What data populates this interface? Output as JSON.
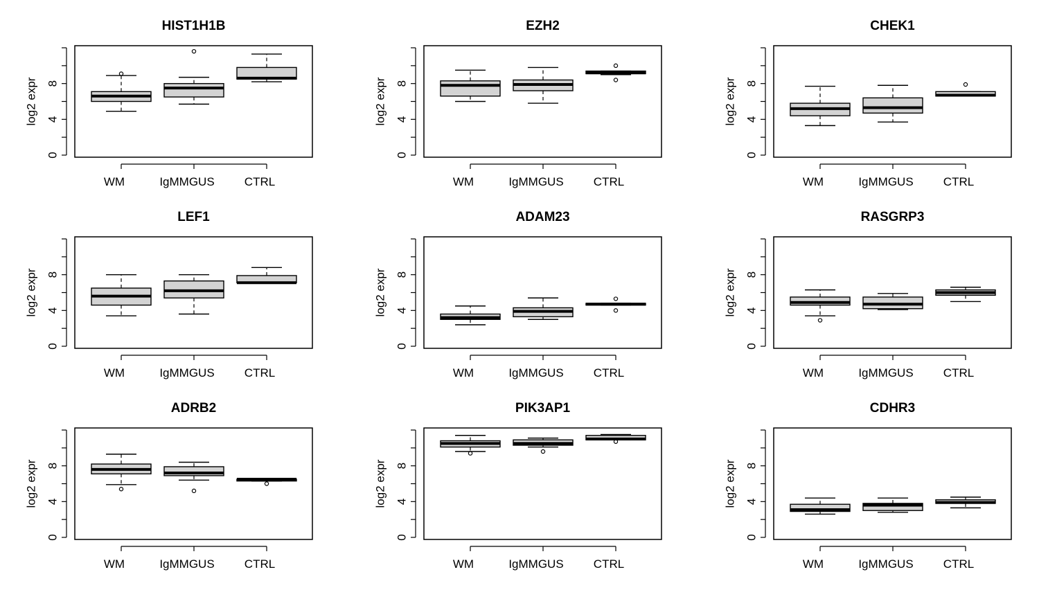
{
  "chart_data": [
    {
      "type": "box",
      "title": "HIST1H1B",
      "ylabel": "log2 expr",
      "ylim": [
        0,
        12
      ],
      "yticks": [
        0,
        4,
        8
      ],
      "categories": [
        "WM",
        "IgMMGUS",
        "CTRL"
      ],
      "boxes": [
        {
          "min": 4.9,
          "q1": 6.0,
          "median": 6.6,
          "q3": 7.1,
          "max": 8.9,
          "outliers": [
            9.1
          ]
        },
        {
          "min": 5.7,
          "q1": 6.5,
          "median": 7.5,
          "q3": 8.0,
          "max": 8.7,
          "outliers": [
            11.6
          ]
        },
        {
          "min": 8.2,
          "q1": 8.5,
          "median": 8.6,
          "q3": 9.8,
          "max": 11.3,
          "outliers": []
        }
      ]
    },
    {
      "type": "box",
      "title": "EZH2",
      "ylabel": "log2 expr",
      "ylim": [
        0,
        12
      ],
      "yticks": [
        0,
        4,
        8
      ],
      "categories": [
        "WM",
        "IgMMGUS",
        "CTRL"
      ],
      "boxes": [
        {
          "min": 6.0,
          "q1": 6.6,
          "median": 7.8,
          "q3": 8.3,
          "max": 9.5,
          "outliers": []
        },
        {
          "min": 5.8,
          "q1": 7.2,
          "median": 7.9,
          "q3": 8.4,
          "max": 9.8,
          "outliers": []
        },
        {
          "min": 9.0,
          "q1": 9.1,
          "median": 9.2,
          "q3": 9.4,
          "max": 9.4,
          "outliers": [
            10.0,
            8.4
          ]
        }
      ]
    },
    {
      "type": "box",
      "title": "CHEK1",
      "ylabel": "log2 expr",
      "ylim": [
        0,
        12
      ],
      "yticks": [
        0,
        4,
        8
      ],
      "categories": [
        "WM",
        "IgMMGUS",
        "CTRL"
      ],
      "boxes": [
        {
          "min": 3.3,
          "q1": 4.4,
          "median": 5.2,
          "q3": 5.8,
          "max": 7.7,
          "outliers": []
        },
        {
          "min": 3.7,
          "q1": 4.7,
          "median": 5.3,
          "q3": 6.4,
          "max": 7.8,
          "outliers": []
        },
        {
          "min": 6.6,
          "q1": 6.6,
          "median": 6.7,
          "q3": 7.1,
          "max": 7.1,
          "outliers": [
            7.9
          ]
        }
      ]
    },
    {
      "type": "box",
      "title": "LEF1",
      "ylabel": "log2 expr",
      "ylim": [
        0,
        12
      ],
      "yticks": [
        0,
        4,
        8
      ],
      "categories": [
        "WM",
        "IgMMGUS",
        "CTRL"
      ],
      "boxes": [
        {
          "min": 3.4,
          "q1": 4.6,
          "median": 5.6,
          "q3": 6.5,
          "max": 8.0,
          "outliers": []
        },
        {
          "min": 3.6,
          "q1": 5.4,
          "median": 6.2,
          "q3": 7.3,
          "max": 8.0,
          "outliers": []
        },
        {
          "min": 7.1,
          "q1": 7.1,
          "median": 7.1,
          "q3": 7.9,
          "max": 8.8,
          "outliers": []
        }
      ]
    },
    {
      "type": "box",
      "title": "ADAM23",
      "ylabel": "log2 expr",
      "ylim": [
        0,
        12
      ],
      "yticks": [
        0,
        4,
        8
      ],
      "categories": [
        "WM",
        "IgMMGUS",
        "CTRL"
      ],
      "boxes": [
        {
          "min": 2.4,
          "q1": 3.0,
          "median": 3.2,
          "q3": 3.6,
          "max": 4.5,
          "outliers": []
        },
        {
          "min": 3.0,
          "q1": 3.3,
          "median": 3.9,
          "q3": 4.3,
          "max": 5.4,
          "outliers": []
        },
        {
          "min": 4.6,
          "q1": 4.6,
          "median": 4.7,
          "q3": 4.8,
          "max": 4.8,
          "outliers": [
            5.3,
            4.0
          ]
        }
      ]
    },
    {
      "type": "box",
      "title": "RASGRP3",
      "ylabel": "log2 expr",
      "ylim": [
        0,
        12
      ],
      "yticks": [
        0,
        4,
        8
      ],
      "categories": [
        "WM",
        "IgMMGUS",
        "CTRL"
      ],
      "boxes": [
        {
          "min": 3.4,
          "q1": 4.6,
          "median": 4.9,
          "q3": 5.5,
          "max": 6.3,
          "outliers": [
            2.9
          ]
        },
        {
          "min": 4.1,
          "q1": 4.2,
          "median": 4.7,
          "q3": 5.5,
          "max": 5.9,
          "outliers": []
        },
        {
          "min": 5.0,
          "q1": 5.7,
          "median": 6.0,
          "q3": 6.3,
          "max": 6.6,
          "outliers": []
        }
      ]
    },
    {
      "type": "box",
      "title": "ADRB2",
      "ylabel": "log2 expr",
      "ylim": [
        0,
        12
      ],
      "yticks": [
        0,
        4,
        8
      ],
      "categories": [
        "WM",
        "IgMMGUS",
        "CTRL"
      ],
      "boxes": [
        {
          "min": 5.9,
          "q1": 7.1,
          "median": 7.6,
          "q3": 8.2,
          "max": 9.3,
          "outliers": [
            5.4
          ]
        },
        {
          "min": 6.4,
          "q1": 6.9,
          "median": 7.2,
          "q3": 7.9,
          "max": 8.4,
          "outliers": [
            5.2
          ]
        },
        {
          "min": 6.3,
          "q1": 6.3,
          "median": 6.5,
          "q3": 6.5,
          "max": 6.5,
          "outliers": [
            6.0
          ]
        }
      ]
    },
    {
      "type": "box",
      "title": "PIK3AP1",
      "ylabel": "log2 expr",
      "ylim": [
        0,
        12
      ],
      "yticks": [
        0,
        4,
        8
      ],
      "categories": [
        "WM",
        "IgMMGUS",
        "CTRL"
      ],
      "boxes": [
        {
          "min": 9.6,
          "q1": 10.1,
          "median": 10.5,
          "q3": 10.8,
          "max": 11.4,
          "outliers": [
            9.4
          ]
        },
        {
          "min": 10.1,
          "q1": 10.3,
          "median": 10.5,
          "q3": 10.9,
          "max": 11.1,
          "outliers": [
            9.6
          ]
        },
        {
          "min": 10.9,
          "q1": 10.9,
          "median": 11.0,
          "q3": 11.4,
          "max": 11.5,
          "outliers": [
            10.7
          ]
        }
      ]
    },
    {
      "type": "box",
      "title": "CDHR3",
      "ylabel": "log2 expr",
      "ylim": [
        0,
        12
      ],
      "yticks": [
        0,
        4,
        8
      ],
      "categories": [
        "WM",
        "IgMMGUS",
        "CTRL"
      ],
      "boxes": [
        {
          "min": 2.6,
          "q1": 2.9,
          "median": 3.1,
          "q3": 3.7,
          "max": 4.4,
          "outliers": []
        },
        {
          "min": 2.8,
          "q1": 3.0,
          "median": 3.6,
          "q3": 3.8,
          "max": 4.4,
          "outliers": []
        },
        {
          "min": 3.3,
          "q1": 3.8,
          "median": 3.9,
          "q3": 4.2,
          "max": 4.5,
          "outliers": []
        }
      ]
    }
  ]
}
